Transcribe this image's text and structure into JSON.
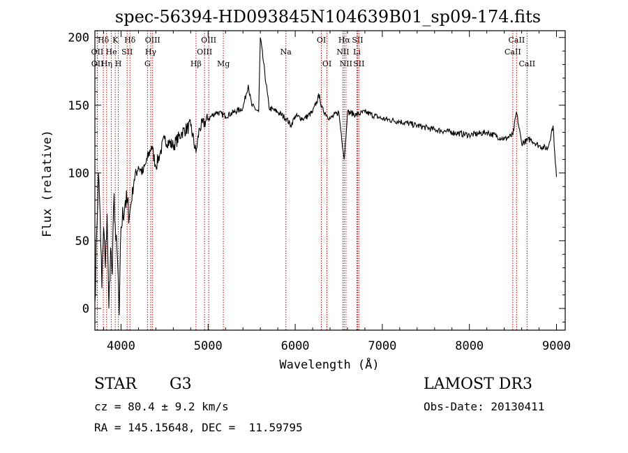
{
  "chart_data": {
    "type": "line",
    "title": "spec-56394-HD093845N104639B01_sp09-174.fits",
    "xlabel": "Wavelength (Å)",
    "ylabel": "Flux (relative)",
    "xlim": [
      3700,
      9100
    ],
    "ylim": [
      -16,
      205
    ],
    "xticks": [
      4000,
      5000,
      6000,
      7000,
      8000,
      9000
    ],
    "yticks": [
      0,
      50,
      100,
      150,
      200
    ],
    "grid": false,
    "series": [
      {
        "x": [
          3700,
          3720,
          3740,
          3760,
          3780,
          3800,
          3820,
          3840,
          3860,
          3880,
          3900,
          3920,
          3940,
          3960,
          3980,
          4000,
          4050,
          4100,
          4150,
          4200,
          4250,
          4300,
          4350,
          4400,
          4450,
          4500,
          4600,
          4700,
          4800,
          4861,
          4900,
          5000,
          5100,
          5200,
          5300,
          5400,
          5460,
          5500,
          5580,
          5600,
          5700,
          5800,
          5900,
          5950,
          6000,
          6100,
          6200,
          6280,
          6300,
          6400,
          6500,
          6563,
          6600,
          6700,
          6800,
          7000,
          7200,
          7400,
          7600,
          7800,
          8000,
          8200,
          8400,
          8500,
          8540,
          8600,
          8700,
          8800,
          8900,
          8960,
          8980,
          9000
        ],
        "y": [
          5,
          55,
          100,
          70,
          15,
          60,
          30,
          70,
          0,
          45,
          25,
          85,
          50,
          35,
          -5,
          60,
          80,
          70,
          95,
          105,
          100,
          110,
          120,
          105,
          115,
          125,
          120,
          130,
          135,
          115,
          133,
          140,
          145,
          142,
          145,
          148,
          165,
          150,
          145,
          200,
          148,
          145,
          140,
          135,
          142,
          140,
          145,
          158,
          148,
          140,
          145,
          110,
          145,
          143,
          145,
          140,
          138,
          135,
          132,
          130,
          128,
          130,
          125,
          128,
          145,
          122,
          125,
          120,
          118,
          135,
          115,
          97
        ]
      }
    ],
    "line_markers": [
      {
        "label": "Hδ",
        "x": 3797,
        "row": 0
      },
      {
        "label": "OII",
        "x": 3727,
        "row": 1
      },
      {
        "label": "OII",
        "x": 3729,
        "row": 2
      },
      {
        "label": "K",
        "x": 3934,
        "row": 0
      },
      {
        "label": "He",
        "x": 3889,
        "row": 1
      },
      {
        "label": "Hη",
        "x": 3835,
        "row": 2
      },
      {
        "label": "Hδ",
        "x": 4102,
        "row": 0
      },
      {
        "label": "SII",
        "x": 4070,
        "row": 1
      },
      {
        "label": "H",
        "x": 3969,
        "row": 2
      },
      {
        "label": "OIII",
        "x": 4363,
        "row": 0
      },
      {
        "label": "Hγ",
        "x": 4341,
        "row": 1
      },
      {
        "label": "G",
        "x": 4304,
        "row": 2
      },
      {
        "label": "OIII",
        "x": 5007,
        "row": 0
      },
      {
        "label": "OIII",
        "x": 4959,
        "row": 1
      },
      {
        "label": "Hβ",
        "x": 4861,
        "row": 2
      },
      {
        "label": "Mg",
        "x": 5175,
        "row": 2
      },
      {
        "label": "Na",
        "x": 5893,
        "row": 1
      },
      {
        "label": "OI",
        "x": 6300,
        "row": 0
      },
      {
        "label": "OI",
        "x": 6364,
        "row": 2
      },
      {
        "label": "Hα",
        "x": 6563,
        "row": 0
      },
      {
        "label": "NII",
        "x": 6548,
        "row": 1
      },
      {
        "label": "NII",
        "x": 6583,
        "row": 2
      },
      {
        "label": "SII",
        "x": 6716,
        "row": 0
      },
      {
        "label": "Li",
        "x": 6708,
        "row": 1
      },
      {
        "label": "SII",
        "x": 6731,
        "row": 2
      },
      {
        "label": "CaII",
        "x": 8542,
        "row": 0
      },
      {
        "label": "CaII",
        "x": 8498,
        "row": 1
      },
      {
        "label": "CaII",
        "x": 8662,
        "row": 2
      }
    ]
  },
  "info": {
    "object_class": "STAR",
    "subclass": "G3",
    "survey": "LAMOST DR3",
    "redshift": "cz = 80.4 ± 9.2 km/s",
    "obs_date": "Obs-Date: 20130411",
    "coords": "RA = 145.15648, DEC =  11.59795"
  },
  "colors": {
    "spectrum": "#000000",
    "line_marker": "#cc0000",
    "axes": "#000000"
  }
}
